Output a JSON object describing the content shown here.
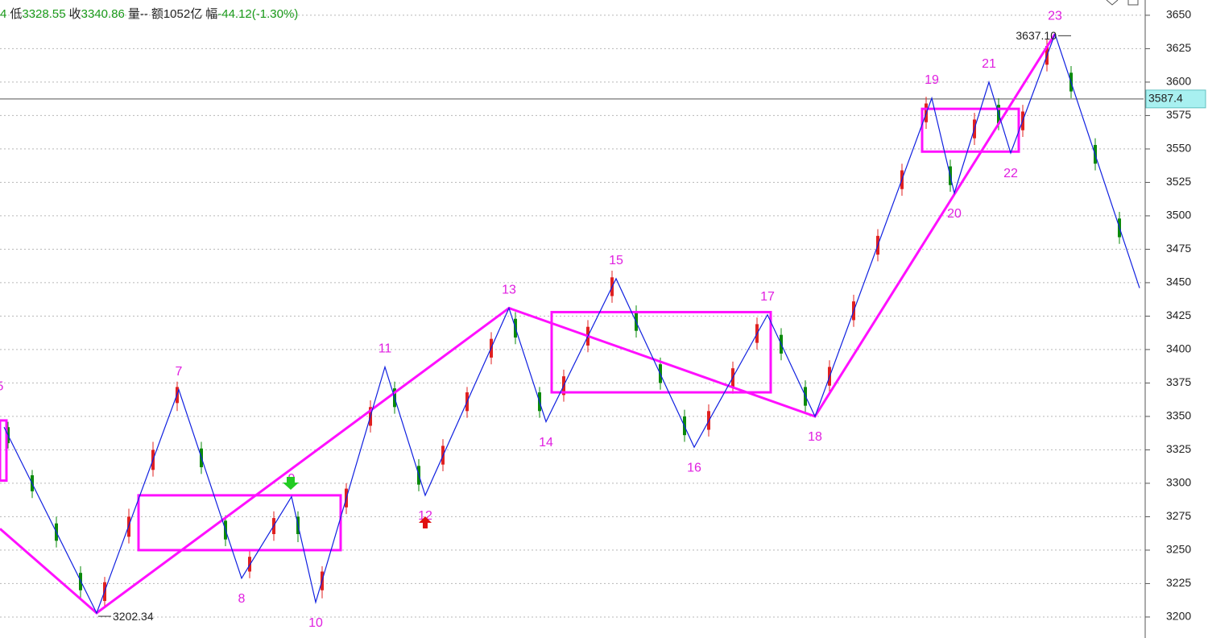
{
  "chart_data": {
    "type": "candlestick",
    "header": [
      {
        "text": "4",
        "color": "#1a9a1a"
      },
      {
        "text": "低",
        "color": "#222222"
      },
      {
        "text": "3328.55",
        "color": "#1a9a1a"
      },
      {
        "text": "收",
        "color": "#222222"
      },
      {
        "text": "3340.86",
        "color": "#1a9a1a"
      },
      {
        "text": "量--",
        "color": "#222222"
      },
      {
        "text": "额1052亿",
        "color": "#222222"
      },
      {
        "text": "幅",
        "color": "#222222"
      },
      {
        "text": "-44.12(-1.30%)",
        "color": "#1a9a1a"
      }
    ],
    "xlim": [
      0,
      1420
    ],
    "ylim": [
      3184.3,
      3661.4
    ],
    "yticks": [
      3200,
      3225,
      3250,
      3275,
      3300,
      3325,
      3350,
      3375,
      3400,
      3425,
      3450,
      3475,
      3500,
      3525,
      3550,
      3575,
      3600,
      3625,
      3650
    ],
    "grid": true,
    "candles": {
      "up_color": "#e02020",
      "down_color": "#0a8a0a",
      "x": [
        10,
        40,
        70,
        100,
        130,
        160,
        190,
        220,
        250,
        280,
        310,
        340,
        370,
        400,
        430,
        460,
        490,
        520,
        550,
        580,
        610,
        640,
        670,
        700,
        730,
        760,
        790,
        820,
        850,
        880,
        910,
        940,
        970,
        1000,
        1030,
        1060,
        1090,
        1120,
        1150,
        1180,
        1210,
        1240,
        1270,
        1300,
        1330,
        1360,
        1390
      ],
      "open": [
        3342,
        3306,
        3270,
        3233,
        3212,
        3260,
        3310,
        3360,
        3326,
        3272,
        3234,
        3262,
        3275,
        3220,
        3282,
        3343,
        3371,
        3313,
        3314,
        3354,
        3394,
        3423,
        3368,
        3366,
        3403,
        3440,
        3428,
        3389,
        3350,
        3340,
        3372,
        3405,
        3411,
        3372,
        3373,
        3422,
        3471,
        3520,
        3570,
        3537,
        3558,
        3583,
        3564,
        3613,
        3607,
        3553,
        3498
      ],
      "close": [
        3330,
        3294,
        3257,
        3220,
        3226,
        3275,
        3325,
        3372,
        3312,
        3258,
        3245,
        3274,
        3262,
        3234,
        3296,
        3357,
        3357,
        3299,
        3328,
        3368,
        3408,
        3409,
        3354,
        3380,
        3417,
        3454,
        3414,
        3375,
        3336,
        3354,
        3386,
        3419,
        3397,
        3358,
        3387,
        3436,
        3485,
        3534,
        3584,
        3523,
        3572,
        3569,
        3578,
        3627,
        3593,
        3539,
        3484
      ],
      "high": [
        3346,
        3310,
        3275,
        3238,
        3230,
        3281,
        3331,
        3376,
        3331,
        3276,
        3250,
        3279,
        3279,
        3238,
        3300,
        3362,
        3376,
        3318,
        3333,
        3372,
        3413,
        3428,
        3372,
        3385,
        3422,
        3459,
        3433,
        3394,
        3355,
        3359,
        3391,
        3424,
        3416,
        3377,
        3392,
        3441,
        3490,
        3539,
        3589,
        3542,
        3577,
        3588,
        3583,
        3632,
        3612,
        3558,
        3503
      ],
      "low": [
        3326,
        3289,
        3252,
        3214,
        3208,
        3255,
        3305,
        3354,
        3307,
        3253,
        3229,
        3257,
        3256,
        3214,
        3277,
        3338,
        3352,
        3294,
        3309,
        3349,
        3389,
        3404,
        3349,
        3361,
        3398,
        3435,
        3409,
        3370,
        3331,
        3335,
        3367,
        3400,
        3392,
        3353,
        3368,
        3417,
        3466,
        3515,
        3565,
        3518,
        3553,
        3564,
        3559,
        3608,
        3588,
        3534,
        3479
      ]
    },
    "zigzag": {
      "color": "#1020e0",
      "label_color": "#e020e0",
      "x": [
        5,
        120,
        222,
        300,
        362,
        392,
        478,
        528,
        632,
        678,
        765,
        862,
        953,
        1012,
        1157,
        1185,
        1228,
        1255,
        1310,
        1415
      ],
      "values": [
        3342,
        3203,
        3370,
        3229,
        3290,
        3211,
        3387,
        3291,
        3431,
        3346,
        3453,
        3327,
        3426,
        3350,
        3588,
        3517,
        3600,
        3547,
        3636,
        3446
      ],
      "labels": [
        "5",
        null,
        "7",
        "8",
        "9",
        "10",
        "11",
        "12",
        "13",
        "14",
        "15",
        "16",
        "17",
        "18",
        "19",
        "20",
        "21",
        "22",
        "23",
        null
      ]
    },
    "trend": {
      "color": "#ff10ff",
      "x": [
        0,
        120,
        632,
        1012,
        1310
      ],
      "values": [
        3266,
        3203,
        3431,
        3350,
        3636
      ]
    },
    "boxes": {
      "color": "#ff10ff",
      "items": [
        {
          "x": [
            0,
            8
          ],
          "range": [
            3302,
            3347
          ]
        },
        {
          "x": [
            172,
            423
          ],
          "range": [
            3250,
            3291
          ]
        },
        {
          "x": [
            685,
            957
          ],
          "range": [
            3368,
            3428
          ]
        },
        {
          "x": [
            1145,
            1265
          ],
          "range": [
            3548,
            3580
          ]
        }
      ]
    },
    "annotations": [
      {
        "x": 120,
        "value": 3202.34,
        "label": "3202.34"
      },
      {
        "x": 1310,
        "value": 3637.1,
        "label": "3637.10"
      }
    ],
    "current_price": 3587.4
  }
}
